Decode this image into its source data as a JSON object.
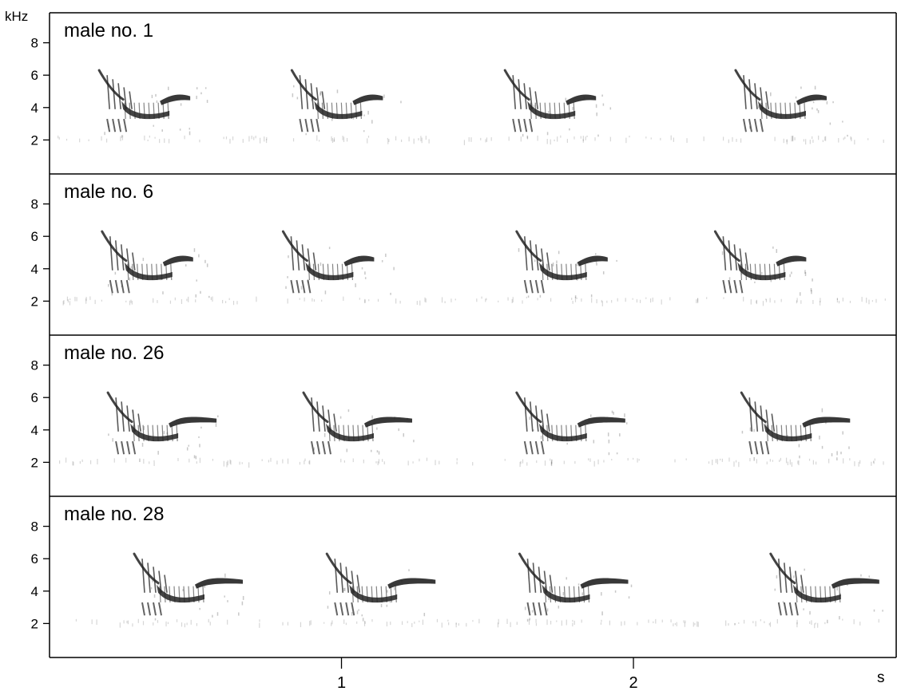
{
  "chart_data": {
    "type": "spectrogram",
    "y_unit": "kHz",
    "x_unit": "s",
    "xlim": [
      0,
      2.9
    ],
    "ylim": [
      0,
      10
    ],
    "y_ticks": [
      2,
      4,
      6,
      8
    ],
    "x_ticks": [
      1,
      2
    ],
    "grid": false,
    "ink_color": "#222222",
    "panels": [
      {
        "label": "male no.  1",
        "song_onsets_s": [
          0.17,
          0.83,
          1.56,
          2.35
        ]
      },
      {
        "label": "male no. 6",
        "song_onsets_s": [
          0.18,
          0.8,
          1.6,
          2.28
        ]
      },
      {
        "label": "male no. 26",
        "song_onsets_s": [
          0.2,
          0.87,
          1.6,
          2.37
        ]
      },
      {
        "label": "male no. 28",
        "song_onsets_s": [
          0.29,
          0.95,
          1.61,
          2.47
        ]
      }
    ]
  }
}
